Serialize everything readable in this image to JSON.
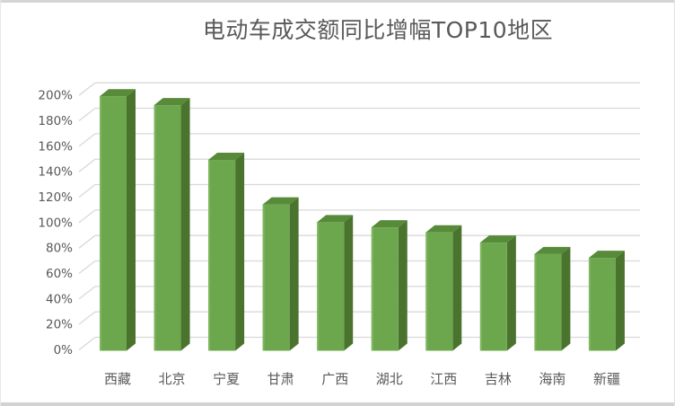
{
  "window": {
    "background": "#ffffff",
    "frame_color": "#d5d5d5"
  },
  "chart_data": {
    "type": "bar",
    "style": "3d-column",
    "title": "电动车成交额同比增幅TOP10地区",
    "categories": [
      "西藏",
      "北京",
      "宁夏",
      "甘肃",
      "广西",
      "湖北",
      "江西",
      "吉林",
      "海南",
      "新疆"
    ],
    "values": [
      200,
      193,
      150,
      115,
      101,
      97,
      93,
      85,
      76,
      73
    ],
    "unit": "%",
    "xlabel": "",
    "ylabel": "",
    "ylim": [
      0,
      200
    ],
    "ytick_step": 20,
    "ytick_labels": [
      "0%",
      "20%",
      "40%",
      "60%",
      "80%",
      "100%",
      "120%",
      "140%",
      "160%",
      "180%",
      "200%"
    ],
    "grid": true,
    "legend": "none"
  },
  "colors": {
    "bar_front": "#6ca74d",
    "bar_front_highlight": "#85ba65",
    "bar_side": "#4a742e",
    "bar_top": "#578a39",
    "gridline": "#d9d9d9",
    "axis_text": "#595959",
    "title_text": "#595959"
  }
}
